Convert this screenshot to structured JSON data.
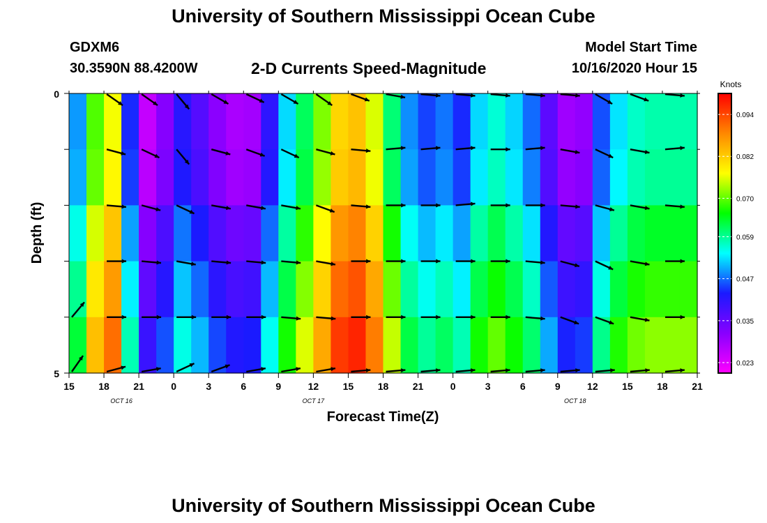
{
  "header": {
    "title": "University of Southern Mississippi Ocean Cube",
    "station": "GDXM6",
    "location": "30.3590N 88.4200W",
    "subtitle": "2-D Currents Speed-Magnitude",
    "model_label": "Model Start Time",
    "model_time": "10/16/2020 Hour 15"
  },
  "footer": {
    "title": "University of Southern Mississippi Ocean Cube"
  },
  "colors": {
    "palette": [
      "#ff00ff",
      "#8800ff",
      "#1a1aff",
      "#00ffff",
      "#00ff00",
      "#ffff00",
      "#ff8800",
      "#ff0000"
    ],
    "arrow": "#000000"
  },
  "chart_data": {
    "type": "heatmap",
    "title": "2-D Currents Speed-Magnitude",
    "xlabel": "Forecast Time(Z)",
    "ylabel": "Depth (ft)",
    "units": "Knots",
    "x_hours": [
      0,
      1.5,
      3,
      4.5,
      6,
      7.5,
      9,
      10.5,
      12,
      13.5,
      15,
      16.5,
      18,
      19.5,
      21,
      22.5,
      24,
      25.5,
      27,
      28.5,
      30,
      31.5,
      33,
      34.5,
      36,
      37.5,
      39,
      40.5,
      42,
      43.5,
      45,
      46.5,
      48,
      49.5,
      51,
      52.5,
      54
    ],
    "x_tick_labels": [
      "15",
      "18",
      "21",
      "0",
      "3",
      "6",
      "9",
      "12",
      "15",
      "18",
      "21",
      "0",
      "3",
      "6",
      "9",
      "12",
      "15",
      "18",
      "21"
    ],
    "date_labels": [
      {
        "hour": 4.5,
        "text": "OCT 16"
      },
      {
        "hour": 21,
        "text": "OCT 17"
      },
      {
        "hour": 43.5,
        "text": "OCT 18"
      }
    ],
    "y_depths": [
      0,
      1,
      2,
      3,
      4,
      5
    ],
    "y_tick_labels": [
      "0",
      "5"
    ],
    "ylim": [
      0,
      5
    ],
    "colorbar": {
      "ticks": [
        0.094,
        0.082,
        0.07,
        0.059,
        0.047,
        0.035,
        0.023
      ],
      "tick_labels": [
        "0.094",
        "0.082",
        "0.070",
        "0.059",
        "0.047",
        "0.035",
        "0.023"
      ],
      "range": [
        0.02,
        0.1
      ]
    },
    "speed_profile": [
      0.04,
      0.07,
      0.08,
      0.025,
      0.032,
      0.045,
      0.035,
      0.03,
      0.031,
      0.05,
      0.062,
      0.075,
      0.088,
      0.08,
      0.06,
      0.045,
      0.05,
      0.045,
      0.06,
      0.055,
      0.048,
      0.032,
      0.03,
      0.05,
      0.058,
      0.06
    ],
    "speed_profile_hours": [
      0,
      2,
      4,
      6,
      8,
      10,
      12,
      14,
      16,
      18,
      20,
      22,
      24,
      26,
      28,
      30,
      32,
      34,
      36,
      38,
      40,
      42,
      44,
      46,
      48,
      50
    ],
    "depth_modifier": [
      0.0,
      -0.004,
      0.002,
      0.006,
      0.01,
      0.014
    ],
    "vectors": {
      "hours": [
        0,
        3,
        6,
        9,
        12,
        15,
        18,
        21,
        24,
        27,
        30,
        33,
        36,
        39,
        42,
        45,
        48,
        51
      ],
      "rows": [
        {
          "depth": 0,
          "angles": [
            null,
            -35,
            -35,
            -50,
            -30,
            -25,
            -30,
            -35,
            -20,
            -10,
            -5,
            -5,
            -5,
            -5,
            -5,
            -30,
            -20,
            -5
          ]
        },
        {
          "depth": 1,
          "angles": [
            null,
            -15,
            -25,
            -50,
            -15,
            -20,
            -25,
            -15,
            -5,
            5,
            5,
            5,
            0,
            5,
            -10,
            -25,
            -10,
            5
          ]
        },
        {
          "depth": 2,
          "angles": [
            null,
            -5,
            -15,
            -25,
            -10,
            -10,
            -10,
            -20,
            -5,
            0,
            0,
            5,
            0,
            0,
            -5,
            -15,
            -10,
            -5
          ]
        },
        {
          "depth": 3,
          "angles": [
            null,
            0,
            -5,
            -10,
            -5,
            -5,
            -5,
            -10,
            0,
            0,
            0,
            0,
            0,
            -5,
            -15,
            -25,
            -10,
            0
          ]
        },
        {
          "depth": 4,
          "angles": [
            50,
            0,
            0,
            0,
            0,
            0,
            -5,
            -5,
            0,
            0,
            0,
            0,
            0,
            -5,
            -20,
            -20,
            -10,
            0
          ]
        },
        {
          "depth": 5,
          "angles": [
            55,
            15,
            10,
            25,
            20,
            10,
            10,
            10,
            5,
            5,
            5,
            5,
            5,
            5,
            5,
            5,
            5,
            5
          ]
        }
      ]
    }
  }
}
